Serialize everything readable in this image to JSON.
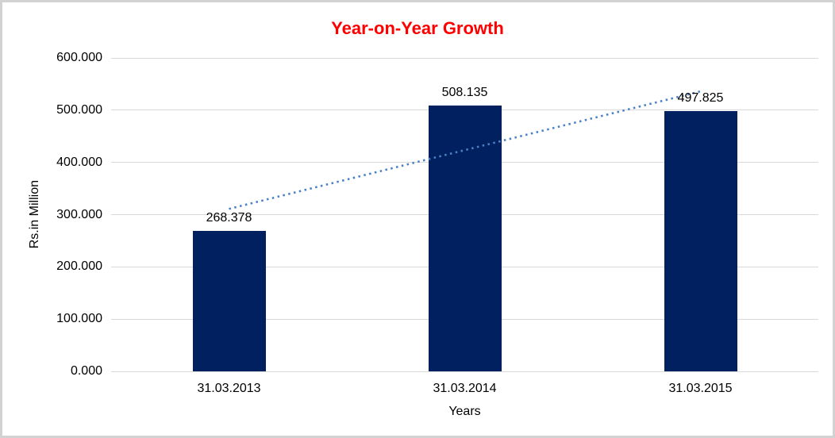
{
  "window": {
    "background": "#ffffff",
    "frame_border_color": "#d2d2d2"
  },
  "chart_data": {
    "type": "bar",
    "title": "Year-on-Year Growth",
    "title_color": "#ff0000",
    "xlabel": "Years",
    "ylabel": "Rs.in Million",
    "categories": [
      "31.03.2013",
      "31.03.2014",
      "31.03.2015"
    ],
    "values": [
      268.378,
      508.135,
      497.825
    ],
    "data_labels": [
      "268.378",
      "508.135",
      "497.825"
    ],
    "ylim": [
      0,
      600
    ],
    "ytick_labels": [
      "0.000",
      "100.000",
      "200.000",
      "300.000",
      "400.000",
      "500.000",
      "600.000"
    ],
    "grid": true,
    "legend": "none",
    "bar_color": "#002060",
    "gridline_color": "#d9d9d9",
    "axis_text_color": "#000000",
    "trendline": {
      "type": "linear",
      "style": "dotted",
      "color": "#4a81c4",
      "start_category_index": 0,
      "end_category_index": 2,
      "start_value": 311,
      "end_value": 536
    }
  }
}
